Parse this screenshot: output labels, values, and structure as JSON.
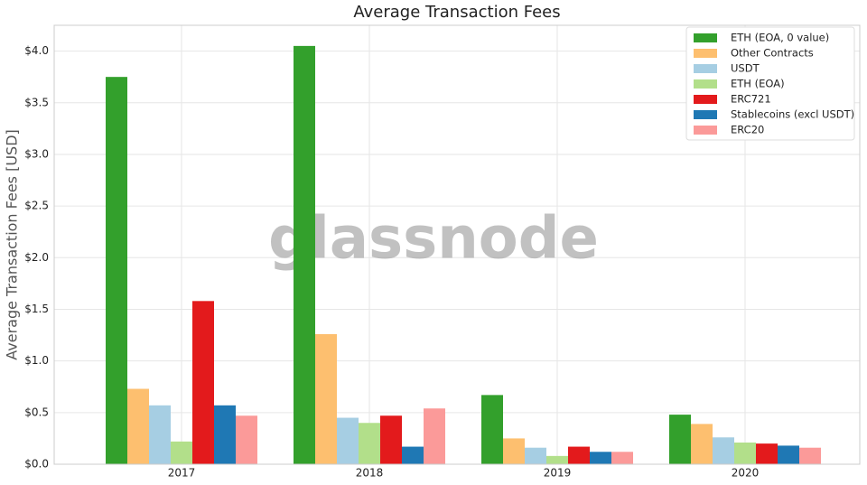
{
  "chart_data": {
    "type": "bar",
    "title": "Average Transaction Fees",
    "y_label": "Average Transaction Fees [USD]",
    "watermark": "glassnode",
    "categories": [
      "2017",
      "2018",
      "2019",
      "2020"
    ],
    "series": [
      {
        "name": "ETH (EOA, 0 value)",
        "color": "#33a02c",
        "values": [
          3.75,
          4.05,
          0.67,
          0.48
        ]
      },
      {
        "name": "Other Contracts",
        "color": "#fdbf6f",
        "values": [
          0.73,
          1.26,
          0.25,
          0.39
        ]
      },
      {
        "name": "USDT",
        "color": "#a6cee3",
        "values": [
          0.57,
          0.45,
          0.16,
          0.26
        ]
      },
      {
        "name": "ETH (EOA)",
        "color": "#b2df8a",
        "values": [
          0.22,
          0.4,
          0.08,
          0.21
        ]
      },
      {
        "name": "ERC721",
        "color": "#e31a1c",
        "values": [
          1.58,
          0.47,
          0.17,
          0.2
        ]
      },
      {
        "name": "Stablecoins (excl USDT)",
        "color": "#1f78b4",
        "values": [
          0.57,
          0.17,
          0.12,
          0.18
        ]
      },
      {
        "name": "ERC20",
        "color": "#fb9a99",
        "values": [
          0.47,
          0.54,
          0.12,
          0.16
        ]
      }
    ],
    "ylim": [
      0,
      4.25
    ],
    "yticks": [
      {
        "value": 0,
        "label": "$0.0"
      },
      {
        "value": 0.5,
        "label": "$0.5"
      },
      {
        "value": 1,
        "label": "$1.0"
      },
      {
        "value": 1.5,
        "label": "$1.5"
      },
      {
        "value": 2,
        "label": "$2.0"
      },
      {
        "value": 2.5,
        "label": "$2.5"
      },
      {
        "value": 3,
        "label": "$3.0"
      },
      {
        "value": 3.5,
        "label": "$3.5"
      },
      {
        "value": 4,
        "label": "$4.0"
      }
    ],
    "grid": true,
    "legend": "upper right"
  }
}
